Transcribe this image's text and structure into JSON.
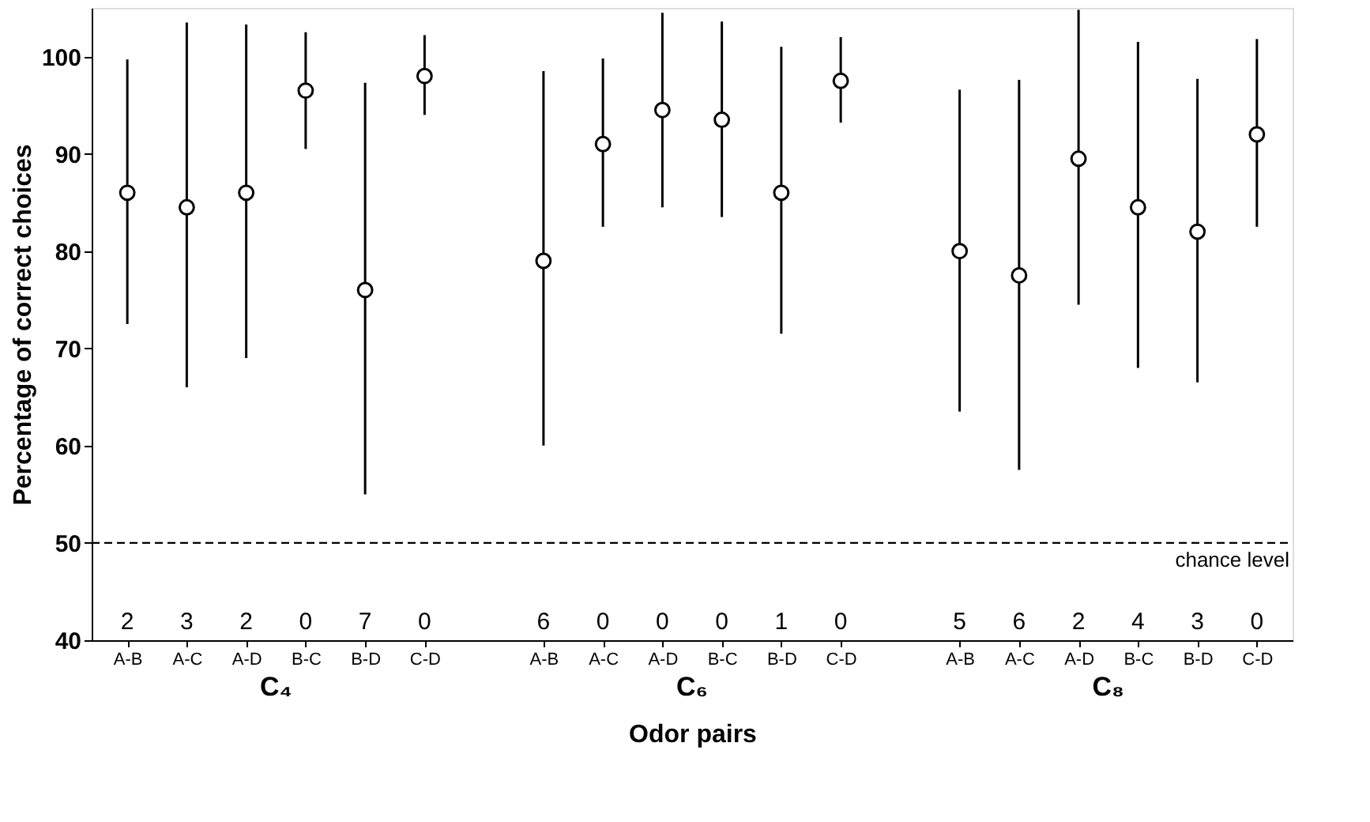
{
  "chart_data": {
    "type": "scatter",
    "xlabel": "Odor pairs",
    "ylabel": "Percentage of correct choices",
    "categories": [
      "A-B",
      "A-C",
      "A-D",
      "B-C",
      "B-D",
      "C-D",
      null,
      "A-B",
      "A-C",
      "A-D",
      "B-C",
      "B-D",
      "C-D",
      null,
      "A-B",
      "A-C",
      "A-D",
      "B-C",
      "B-D",
      "C-D"
    ],
    "series": [
      {
        "color": "#000000",
        "values": [
          86,
          84.5,
          86,
          96.5,
          76,
          98,
          null,
          79,
          91,
          94.5,
          93.5,
          86,
          97.5,
          null,
          80,
          77.5,
          89.5,
          84.5,
          82,
          92
        ],
        "errors": [
          [
            72.5,
            99.7
          ],
          [
            66,
            103.5
          ],
          [
            69,
            103.3
          ],
          [
            90.5,
            102.5
          ],
          [
            55,
            97.3
          ],
          [
            94,
            102.2
          ],
          null,
          [
            60,
            98.5
          ],
          [
            82.5,
            99.8
          ],
          [
            84.5,
            104.5
          ],
          [
            83.5,
            103.6
          ],
          [
            71.5,
            101
          ],
          [
            93.2,
            102
          ],
          null,
          [
            63.5,
            96.6
          ],
          [
            57.5,
            97.6
          ],
          [
            74.5,
            104.8
          ],
          [
            68,
            101.5
          ],
          [
            66.5,
            97.7
          ],
          [
            82.5,
            101.8
          ]
        ]
      }
    ],
    "ylim": [
      40,
      105
    ],
    "yticks": [
      40,
      50,
      60,
      70,
      80,
      90,
      100
    ],
    "grid": false,
    "marker": "circle",
    "ref_lines": [
      {
        "axis": "y",
        "value": 50,
        "label": "chance level",
        "line_style": "dashed",
        "color": "#000000"
      }
    ],
    "annotations": [
      "2",
      "3",
      "2",
      "0",
      "7",
      "0",
      "6",
      "0",
      "0",
      "0",
      "1",
      "0",
      "5",
      "6",
      "2",
      "4",
      "3",
      "0",
      "C₄",
      "C₆",
      "C₈"
    ]
  }
}
